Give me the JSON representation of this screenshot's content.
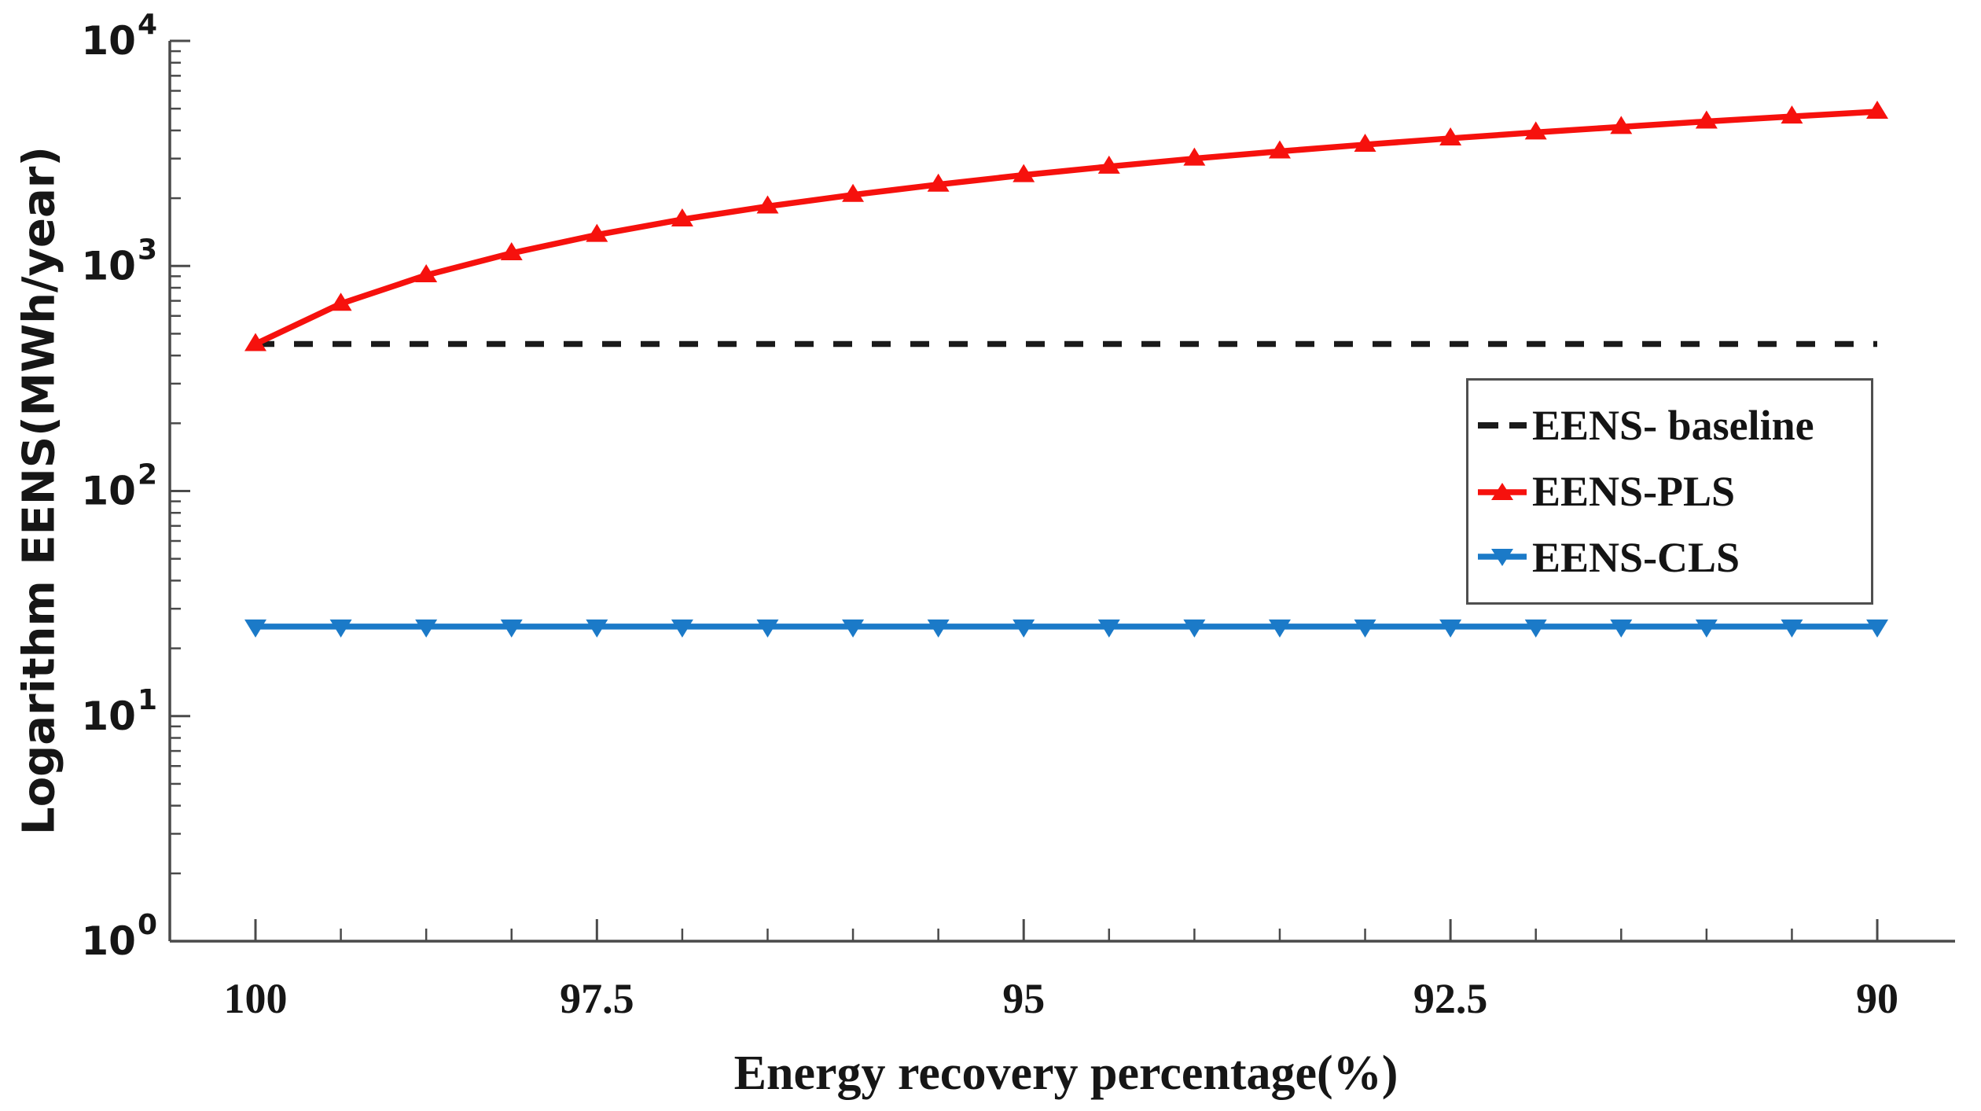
{
  "figure": {
    "type": "log-scale line chart",
    "background": "#ffffff"
  },
  "colors": {
    "baseline": "#1a1a1a",
    "pls": "#f6110d",
    "cls": "#1b7ac8",
    "axis": "#4a4a4a",
    "text": "#161616"
  },
  "chart_data": {
    "type": "line",
    "title": "",
    "xlabel": "Energy recovery percentage(%)",
    "ylabel": "Logarithm EENS(MWh/year)",
    "x_axis": {
      "direction": "reversed",
      "tick_labels": [
        "100",
        "97.5",
        "95",
        "92.5",
        "90"
      ],
      "tick_values": [
        100,
        97.5,
        95,
        92.5,
        90
      ],
      "minor_tick_step": 0.5
    },
    "y_axis": {
      "scale": "log10",
      "ticks": [
        1,
        10,
        100,
        1000,
        10000
      ],
      "tick_label_base": "10",
      "tick_exponents": [
        0,
        1,
        2,
        3,
        4
      ],
      "range": [
        1,
        10000
      ]
    },
    "x": [
      100,
      99.47,
      98.95,
      98.42,
      97.89,
      97.37,
      96.84,
      96.32,
      95.79,
      95.26,
      94.74,
      94.21,
      93.68,
      93.16,
      92.63,
      92.11,
      91.58,
      91.05,
      90.53,
      90
    ],
    "series": [
      {
        "name": "EENS- baseline",
        "style": "dashed",
        "marker": "none",
        "color": "#1a1a1a",
        "constant_value": 450,
        "values": [
          450,
          450,
          450,
          450,
          450,
          450,
          450,
          450,
          450,
          450,
          450,
          450,
          450,
          450,
          450,
          450,
          450,
          450,
          450,
          450
        ]
      },
      {
        "name": "EENS-PLS",
        "style": "solid",
        "marker": "triangle-up",
        "color": "#f6110d",
        "values": [
          450,
          680,
          910,
          1140,
          1375,
          1610,
          1840,
          2070,
          2300,
          2535,
          2765,
          3000,
          3230,
          3460,
          3690,
          3920,
          4150,
          4385,
          4615,
          4850
        ]
      },
      {
        "name": "EENS-CLS",
        "style": "solid",
        "marker": "triangle-down",
        "color": "#1b7ac8",
        "values": [
          25,
          25,
          25,
          25,
          25,
          25,
          25,
          25,
          25,
          25,
          25,
          25,
          25,
          25,
          25,
          25,
          25,
          25,
          25,
          25
        ]
      }
    ],
    "legend_position": "middle-right",
    "grid": false
  }
}
